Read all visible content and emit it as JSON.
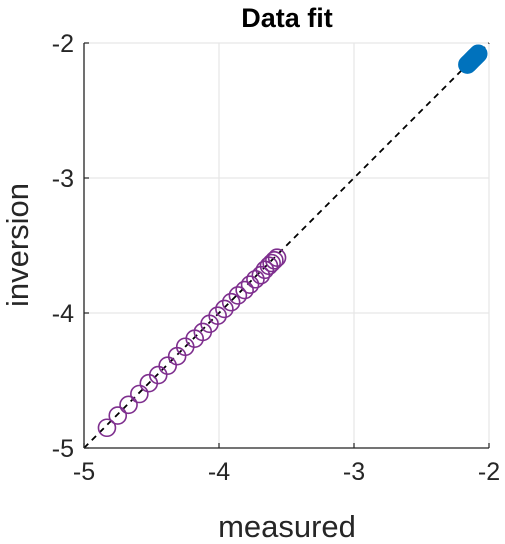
{
  "chart_data": {
    "type": "scatter",
    "title": "Data fit",
    "xlabel": "measured",
    "ylabel": "inversion",
    "xlim": [
      -5,
      -2
    ],
    "ylim": [
      -5,
      -2
    ],
    "xticks": [
      -5,
      -4,
      -3,
      -2
    ],
    "yticks": [
      -5,
      -4,
      -3,
      -2
    ],
    "xtick_labels": [
      "-5",
      "-4",
      "-3",
      "-2"
    ],
    "ytick_labels": [
      "-5",
      "-4",
      "-3",
      "-2"
    ],
    "grid": true,
    "reference_line": {
      "style": "dashed",
      "color": "#000000",
      "from": [
        -5,
        -5
      ],
      "to": [
        -2,
        -2
      ]
    },
    "series": [
      {
        "marker": "open-circle",
        "color": "#7e2f8e",
        "points": [
          [
            -4.83,
            -4.85
          ],
          [
            -4.75,
            -4.76
          ],
          [
            -4.67,
            -4.68
          ],
          [
            -4.59,
            -4.6
          ],
          [
            -4.52,
            -4.52
          ],
          [
            -4.45,
            -4.46
          ],
          [
            -4.38,
            -4.39
          ],
          [
            -4.31,
            -4.32
          ],
          [
            -4.25,
            -4.25
          ],
          [
            -4.18,
            -4.19
          ],
          [
            -4.12,
            -4.14
          ],
          [
            -4.07,
            -4.08
          ],
          [
            -4.01,
            -4.02
          ],
          [
            -3.96,
            -3.97
          ],
          [
            -3.91,
            -3.92
          ],
          [
            -3.86,
            -3.87
          ],
          [
            -3.81,
            -3.83
          ],
          [
            -3.77,
            -3.79
          ],
          [
            -3.73,
            -3.75
          ],
          [
            -3.69,
            -3.72
          ],
          [
            -3.66,
            -3.68
          ],
          [
            -3.63,
            -3.65
          ],
          [
            -3.61,
            -3.63
          ],
          [
            -3.59,
            -3.61
          ],
          [
            -3.57,
            -3.59
          ]
        ]
      },
      {
        "marker": "filled-circle",
        "color": "#0072bd",
        "points": [
          [
            -2.16,
            -2.16
          ],
          [
            -2.15,
            -2.15
          ],
          [
            -2.14,
            -2.14
          ],
          [
            -2.13,
            -2.13
          ],
          [
            -2.12,
            -2.12
          ],
          [
            -2.11,
            -2.11
          ],
          [
            -2.1,
            -2.1
          ],
          [
            -2.09,
            -2.09
          ],
          [
            -2.08,
            -2.08
          ]
        ]
      }
    ]
  }
}
